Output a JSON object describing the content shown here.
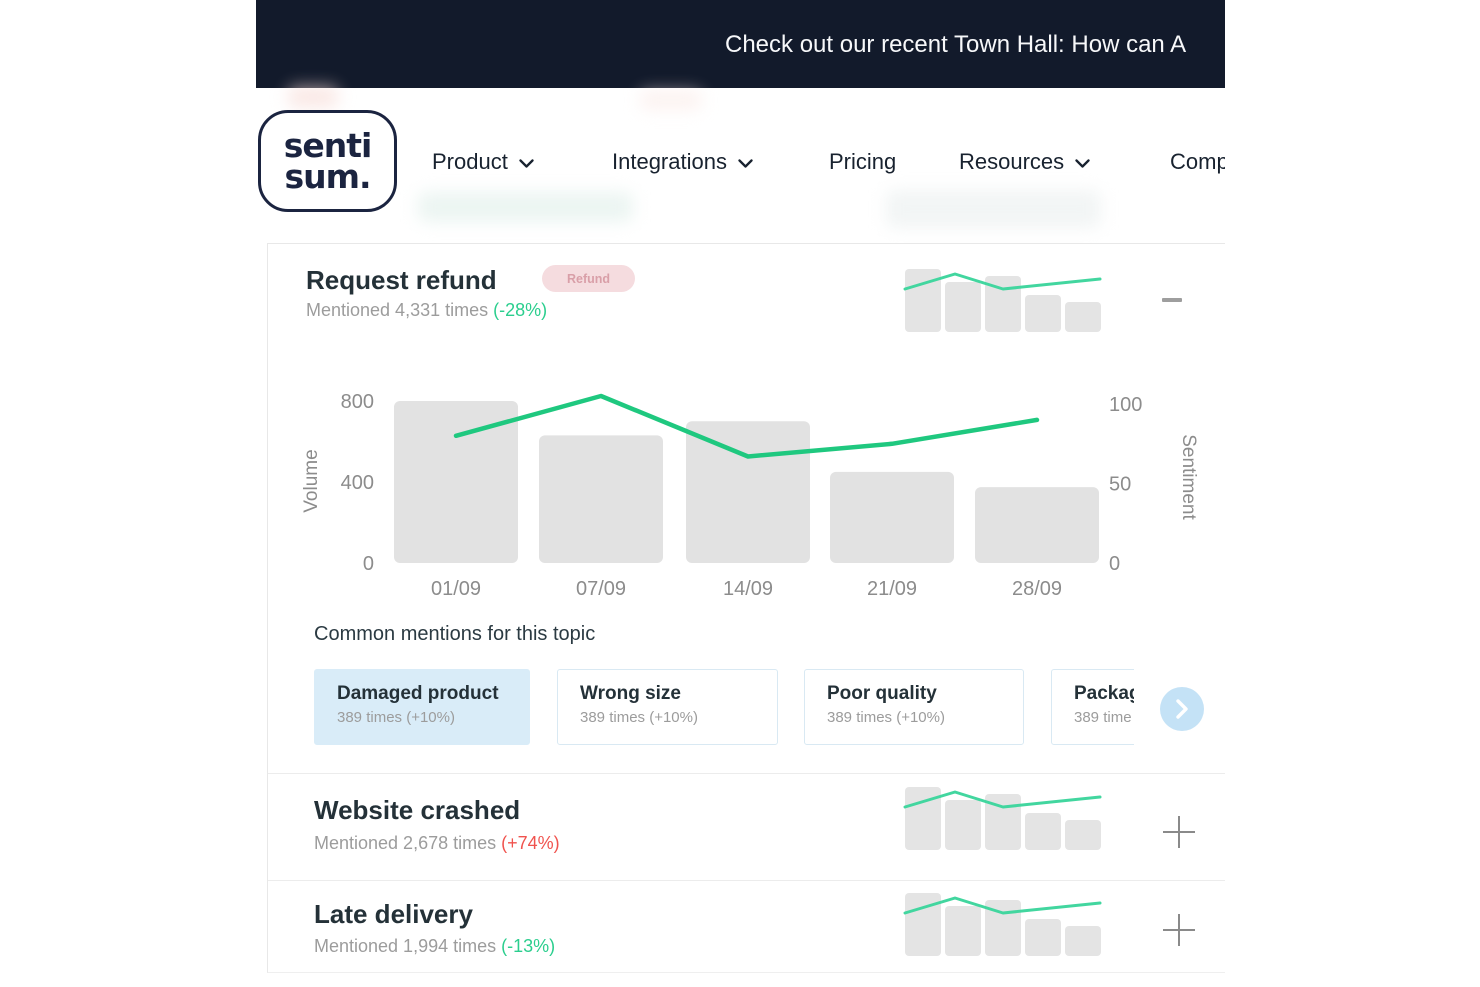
{
  "banner": {
    "text": "Check out our recent Town Hall: How can A",
    "bg_color": "#121A2B"
  },
  "logo": {
    "line1": "senti",
    "line2": "sum."
  },
  "nav": {
    "items": [
      {
        "label": "Product",
        "dropdown": true
      },
      {
        "label": "Integrations",
        "dropdown": true
      },
      {
        "label": "Pricing",
        "dropdown": false
      },
      {
        "label": "Resources",
        "dropdown": true
      },
      {
        "label": "Comp",
        "dropdown": false
      }
    ]
  },
  "topic": {
    "title": "Request refund",
    "mentions": "Mentioned 4,331 times",
    "change": "(-28%)",
    "tag": "Refund"
  },
  "common_mentions": {
    "heading": "Common mentions for this topic",
    "cards": [
      {
        "title": "Damaged product",
        "sub": "389 times (+10%)",
        "highlighted": true
      },
      {
        "title": "Wrong size",
        "sub": "389 times (+10%)",
        "highlighted": false
      },
      {
        "title": "Poor quality",
        "sub": "389 times (+10%)",
        "highlighted": false
      },
      {
        "title": "Packag",
        "sub": "389 time",
        "highlighted": false
      }
    ]
  },
  "rows": [
    {
      "title": "Website crashed",
      "mentions": "Mentioned 2,678 times",
      "change": "(+74%)",
      "trend": "up-bad"
    },
    {
      "title": "Late delivery",
      "mentions": "Mentioned 1,994 times",
      "change": "(-13%)",
      "trend": "down-good"
    }
  ],
  "chart_data": {
    "type": "bar",
    "categories": [
      "01/09",
      "07/09",
      "14/09",
      "21/09",
      "28/09"
    ],
    "series": [
      {
        "name": "Volume",
        "type": "bar",
        "axis": "left",
        "values": [
          800,
          630,
          700,
          450,
          375
        ]
      },
      {
        "name": "Sentiment",
        "type": "line",
        "axis": "right",
        "values": [
          80,
          105,
          67,
          75,
          90
        ]
      }
    ],
    "ylabel_left": "Volume",
    "ylabel_right": "Sentiment",
    "ylim_left": [
      0,
      800
    ],
    "ylim_right": [
      0,
      100
    ],
    "left_ticks": [
      800,
      400,
      0
    ],
    "right_ticks": [
      100,
      50,
      0
    ],
    "grid": false,
    "legend": "none",
    "bar_color": "#E2E2E2",
    "line_color": "#1FC87F"
  },
  "sparkline_data": {
    "type": "bar",
    "note": "mini bar+line trend, same on all three topic rows",
    "bars": [
      63,
      50,
      56,
      37,
      30
    ],
    "line": [
      [
        2,
        24
      ],
      [
        52,
        9
      ],
      [
        100,
        24
      ],
      [
        197,
        14
      ]
    ],
    "bar_color": "#E4E4E4",
    "line_color": "#42D69F"
  },
  "colors": {
    "banner_bg": "#121A2B",
    "brand_navy": "#1B2440",
    "positive_green": "#2BCE8E",
    "negative_red": "#F0534E",
    "chart_line_green": "#1FC87F",
    "bar_gray": "#E2E2E2",
    "tag_bg": "#F5DCDF",
    "tag_text": "#D99FA8",
    "highlight_card_bg": "#D9ECF8",
    "arrow_button_bg": "#C4E2F6",
    "muted_text": "#9C9C9C"
  }
}
